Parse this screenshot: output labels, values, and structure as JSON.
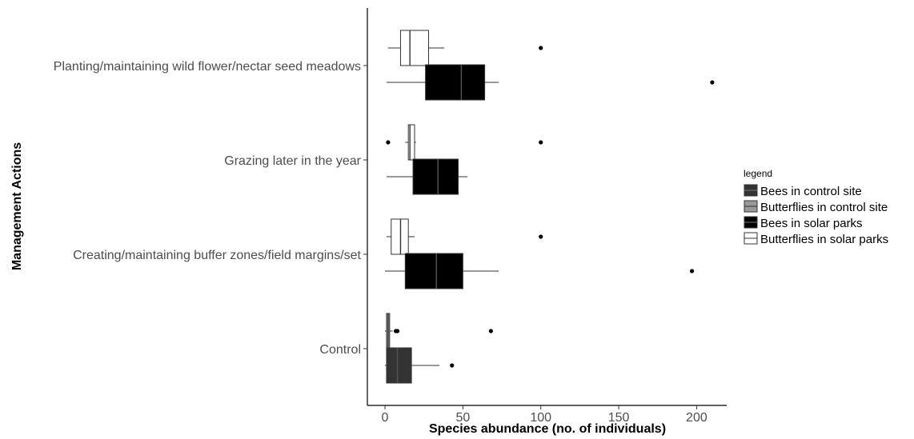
{
  "chart_data": {
    "type": "boxplot",
    "orientation": "horizontal",
    "xlabel": "Species abundance (no. of individuals)",
    "ylabel": "Management Actions",
    "xlim": [
      -10,
      220
    ],
    "xticks": [
      0,
      50,
      100,
      150,
      200
    ],
    "grid": false,
    "legend_placement": "right",
    "legend_title": "legend",
    "categories": [
      "Planting/maintaining wild flower/nectar seed meadows",
      "Grazing later in the year",
      "Creating/maintaining buffer zones/field margins/set",
      "Control"
    ],
    "series": [
      {
        "name": "Bees in control site",
        "fill": "#333333",
        "line": "#000000"
      },
      {
        "name": "Butterflies in control site",
        "fill": "#999999",
        "line": "#000000"
      },
      {
        "name": "Bees in solar parks",
        "fill": "#000000",
        "line": "#000000"
      },
      {
        "name": "Butterflies in solar parks",
        "fill": "#ffffff",
        "line": "#000000"
      }
    ],
    "boxes": [
      {
        "category": "Planting/maintaining wild flower/nectar seed meadows",
        "series": "Butterflies in solar parks",
        "whisker_low": 2,
        "q1": 10,
        "median": 16,
        "q3": 28,
        "whisker_high": 38,
        "outliers": [
          100
        ]
      },
      {
        "category": "Planting/maintaining wild flower/nectar seed meadows",
        "series": "Bees in solar parks",
        "whisker_low": 1,
        "q1": 26,
        "median": 49,
        "q3": 64,
        "whisker_high": 73,
        "outliers": [
          210
        ]
      },
      {
        "category": "Grazing later in the year",
        "series": "Butterflies in solar parks",
        "whisker_low": 13,
        "q1": 15,
        "median": 16,
        "q3": 19,
        "whisker_high": 20,
        "outliers": [
          2,
          100
        ]
      },
      {
        "category": "Grazing later in the year",
        "series": "Bees in solar parks",
        "whisker_low": 1,
        "q1": 18,
        "median": 34,
        "q3": 47,
        "whisker_high": 53,
        "outliers": []
      },
      {
        "category": "Creating/maintaining buffer zones/field margins/set",
        "series": "Butterflies in solar parks",
        "whisker_low": 1,
        "q1": 4,
        "median": 10,
        "q3": 15,
        "whisker_high": 19,
        "outliers": [
          100
        ]
      },
      {
        "category": "Creating/maintaining buffer zones/field margins/set",
        "series": "Bees in solar parks",
        "whisker_low": 0,
        "q1": 13,
        "median": 33,
        "q3": 50,
        "whisker_high": 73,
        "outliers": [
          197
        ]
      },
      {
        "category": "Control",
        "series": "Butterflies in control site",
        "whisker_low": 0,
        "q1": 1,
        "median": 2,
        "q3": 3,
        "whisker_high": 5,
        "outliers": [
          7,
          8,
          68
        ]
      },
      {
        "category": "Control",
        "series": "Bees in control site",
        "whisker_low": 0,
        "q1": 1,
        "median": 8,
        "q3": 17,
        "whisker_high": 35,
        "outliers": [
          43
        ]
      }
    ]
  }
}
